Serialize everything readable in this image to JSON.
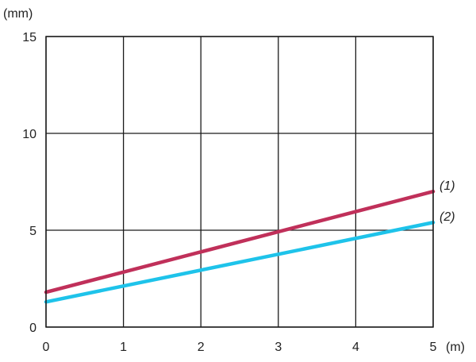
{
  "chart_data": {
    "type": "line",
    "title": "",
    "xlabel": "",
    "ylabel": "",
    "x_unit": "(m)",
    "y_unit": "(mm)",
    "xlim": [
      0,
      5
    ],
    "ylim": [
      0,
      15
    ],
    "x_ticks": [
      0,
      1,
      2,
      3,
      4,
      5
    ],
    "y_ticks": [
      0,
      5,
      10,
      15
    ],
    "x_tick_labels": [
      "0",
      "1",
      "2",
      "3",
      "4",
      "5"
    ],
    "y_tick_labels": [
      "0",
      "5",
      "10",
      "15"
    ],
    "grid": true,
    "legend": "none",
    "series": [
      {
        "label": "(1)",
        "color": "#c0305a",
        "x": [
          0,
          5
        ],
        "y": [
          1.8,
          7.0
        ]
      },
      {
        "label": "(2)",
        "color": "#1ec3ea",
        "x": [
          0,
          5
        ],
        "y": [
          1.3,
          5.4
        ]
      }
    ]
  }
}
